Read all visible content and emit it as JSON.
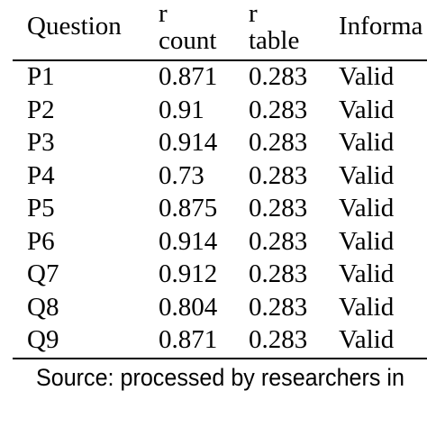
{
  "table": {
    "headers": {
      "question": "Question",
      "r_count_top": "r",
      "r_count_bottom": "count",
      "r_table_top": "r",
      "r_table_bottom": "table",
      "information": "Informa"
    },
    "rows": [
      {
        "question": "P1",
        "r_count": "0.871",
        "r_table": "0.283",
        "information": "Valid"
      },
      {
        "question": "P2",
        "r_count": "0.91",
        "r_table": "0.283",
        "information": "Valid"
      },
      {
        "question": "P3",
        "r_count": "0.914",
        "r_table": "0.283",
        "information": "Valid"
      },
      {
        "question": "P4",
        "r_count": "0.73",
        "r_table": "0.283",
        "information": "Valid"
      },
      {
        "question": "P5",
        "r_count": "0.875",
        "r_table": "0.283",
        "information": "Valid"
      },
      {
        "question": "P6",
        "r_count": "0.914",
        "r_table": "0.283",
        "information": "Valid"
      },
      {
        "question": "Q7",
        "r_count": "0.912",
        "r_table": "0.283",
        "information": "Valid"
      },
      {
        "question": "Q8",
        "r_count": "0.804",
        "r_table": "0.283",
        "information": "Valid"
      },
      {
        "question": "Q9",
        "r_count": "0.871",
        "r_table": "0.283",
        "information": "Valid"
      }
    ]
  },
  "source_note": "Source: processed by researchers in"
}
